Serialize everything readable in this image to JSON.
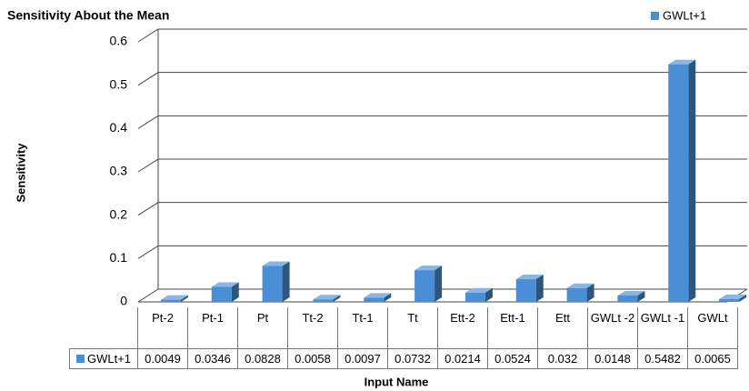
{
  "chart_data": {
    "type": "bar",
    "title": "Sensitivity About the Mean",
    "y_label": "Sensitivity",
    "x_label": "Input Name",
    "categories": [
      "Pt-2",
      "Pt-1",
      "Pt",
      "Tt-2",
      "Tt-1",
      "Tt",
      "Ett-2",
      "Ett-1",
      "Ett",
      "GWLt -2",
      "GWLt -1",
      "GWLt"
    ],
    "series": [
      {
        "name": "GWLt+1",
        "color": "#4a8fd6",
        "values": [
          0.0049,
          0.0346,
          0.0828,
          0.0058,
          0.0097,
          0.0732,
          0.0214,
          0.0524,
          0.032,
          0.0148,
          0.5482,
          0.0065
        ]
      }
    ],
    "ylim": [
      0,
      0.6
    ],
    "yticks": [
      0,
      0.1,
      0.2,
      0.3,
      0.4,
      0.5,
      0.6
    ],
    "grid": true,
    "legend": "top-right",
    "data_table": true
  }
}
